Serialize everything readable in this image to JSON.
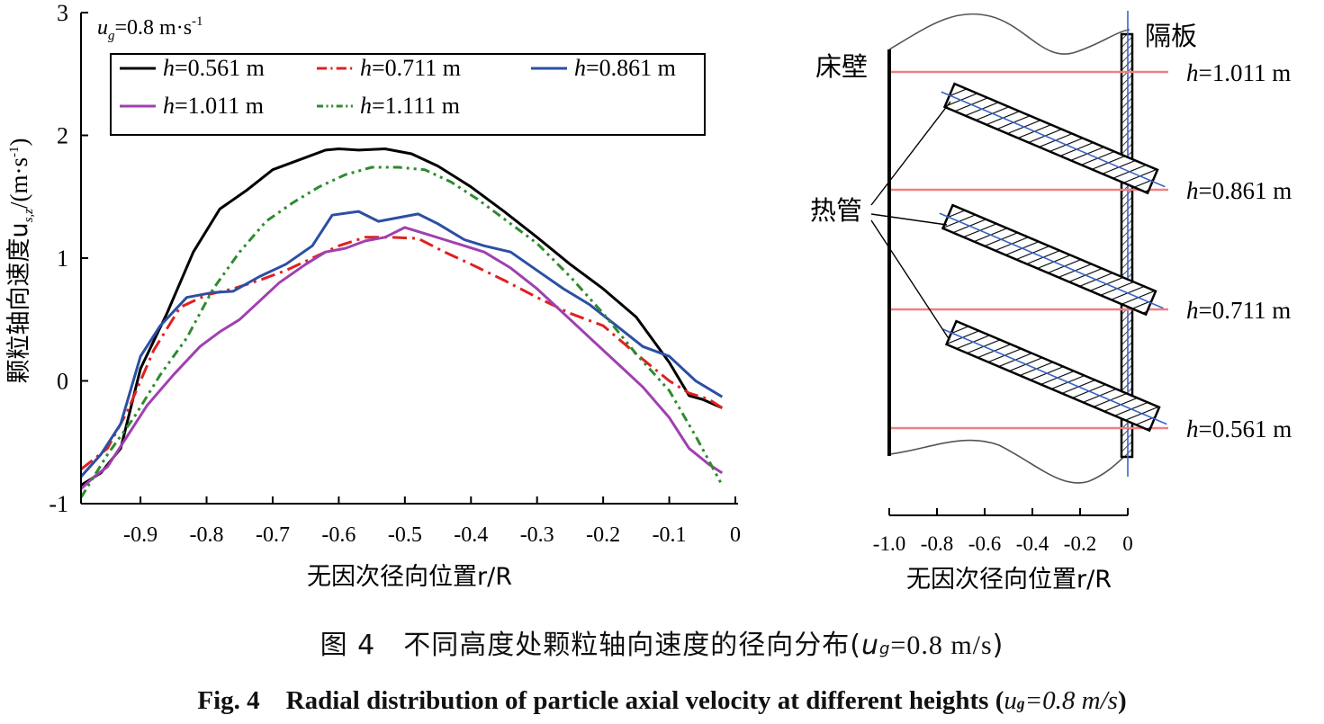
{
  "chart_data": [
    {
      "type": "line",
      "xlabel": "无因次径向位置r/R",
      "ylabel": "颗粒轴向速度u",
      "ylabel_sub": "s,z",
      "ylabel_unit": "/(m·s",
      "ylabel_unit_sup": "-1",
      "ylabel_unit_end": ")",
      "xlim": [
        -0.99,
        0
      ],
      "ylim": [
        -1,
        3
      ],
      "xticks": [
        -0.9,
        -0.8,
        -0.7,
        -0.6,
        -0.5,
        -0.4,
        -0.3,
        -0.2,
        -0.1,
        0
      ],
      "xticklabels": [
        "-0.9",
        "-0.8",
        "-0.7",
        "-0.6",
        "-0.5",
        "-0.4",
        "-0.3",
        "-0.2",
        "-0.1",
        "0"
      ],
      "yticks": [
        -1,
        0,
        1,
        2,
        3
      ],
      "yticklabels": [
        "-1",
        "0",
        "1",
        "2",
        "3"
      ],
      "annotation": {
        "main": "u",
        "sub": "g",
        "rest": "=0.8 m·s",
        "sup": "-1"
      },
      "legend_position": "top",
      "series": [
        {
          "name": "h=0.561 m",
          "color": "#000000",
          "dash": "",
          "x": [
            -0.99,
            -0.96,
            -0.93,
            -0.9,
            -0.86,
            -0.82,
            -0.78,
            -0.74,
            -0.7,
            -0.66,
            -0.62,
            -0.6,
            -0.57,
            -0.53,
            -0.49,
            -0.45,
            -0.4,
            -0.35,
            -0.3,
            -0.25,
            -0.2,
            -0.15,
            -0.1,
            -0.07,
            -0.05,
            -0.02
          ],
          "y": [
            -0.85,
            -0.75,
            -0.55,
            0.1,
            0.55,
            1.05,
            1.4,
            1.55,
            1.72,
            1.8,
            1.88,
            1.89,
            1.88,
            1.89,
            1.85,
            1.75,
            1.58,
            1.38,
            1.17,
            0.95,
            0.75,
            0.52,
            0.15,
            -0.12,
            -0.15,
            -0.22
          ]
        },
        {
          "name": "h=0.711 m",
          "color": "#e02020",
          "dash": "16,6,3,6",
          "x": [
            -0.99,
            -0.95,
            -0.92,
            -0.88,
            -0.84,
            -0.8,
            -0.76,
            -0.72,
            -0.68,
            -0.64,
            -0.6,
            -0.56,
            -0.52,
            -0.48,
            -0.44,
            -0.4,
            -0.35,
            -0.3,
            -0.25,
            -0.2,
            -0.15,
            -0.1,
            -0.07,
            -0.04,
            -0.02
          ],
          "y": [
            -0.72,
            -0.55,
            -0.25,
            0.25,
            0.6,
            0.7,
            0.75,
            0.82,
            0.9,
            1.0,
            1.1,
            1.17,
            1.17,
            1.16,
            1.05,
            0.95,
            0.82,
            0.68,
            0.55,
            0.45,
            0.22,
            0.0,
            -0.1,
            -0.15,
            -0.22
          ]
        },
        {
          "name": "h=0.861 m",
          "color": "#2c4fa3",
          "dash": "",
          "x": [
            -0.99,
            -0.96,
            -0.93,
            -0.9,
            -0.87,
            -0.83,
            -0.79,
            -0.76,
            -0.72,
            -0.68,
            -0.64,
            -0.61,
            -0.57,
            -0.54,
            -0.51,
            -0.48,
            -0.45,
            -0.41,
            -0.38,
            -0.34,
            -0.3,
            -0.26,
            -0.22,
            -0.18,
            -0.14,
            -0.1,
            -0.06,
            -0.02
          ],
          "y": [
            -0.78,
            -0.6,
            -0.35,
            0.2,
            0.45,
            0.68,
            0.72,
            0.73,
            0.85,
            0.95,
            1.1,
            1.35,
            1.38,
            1.3,
            1.33,
            1.36,
            1.28,
            1.15,
            1.1,
            1.05,
            0.9,
            0.75,
            0.62,
            0.45,
            0.28,
            0.2,
            0.0,
            -0.13
          ]
        },
        {
          "name": "h=1.011 m",
          "color": "#a040b0",
          "dash": "",
          "x": [
            -0.99,
            -0.97,
            -0.95,
            -0.92,
            -0.89,
            -0.85,
            -0.81,
            -0.78,
            -0.75,
            -0.72,
            -0.69,
            -0.65,
            -0.62,
            -0.59,
            -0.56,
            -0.53,
            -0.5,
            -0.47,
            -0.44,
            -0.41,
            -0.38,
            -0.34,
            -0.3,
            -0.26,
            -0.22,
            -0.18,
            -0.14,
            -0.1,
            -0.07,
            -0.04,
            -0.02
          ],
          "y": [
            -0.88,
            -0.78,
            -0.7,
            -0.45,
            -0.2,
            0.05,
            0.28,
            0.4,
            0.5,
            0.65,
            0.8,
            0.95,
            1.05,
            1.08,
            1.14,
            1.17,
            1.25,
            1.2,
            1.15,
            1.1,
            1.05,
            0.92,
            0.75,
            0.55,
            0.35,
            0.15,
            -0.05,
            -0.3,
            -0.55,
            -0.68,
            -0.75
          ]
        },
        {
          "name": "h=1.111 m",
          "color": "#2e8b2e",
          "dash": "10,5,3,5,3,5",
          "x": [
            -0.99,
            -0.95,
            -0.91,
            -0.87,
            -0.83,
            -0.79,
            -0.75,
            -0.71,
            -0.67,
            -0.63,
            -0.59,
            -0.55,
            -0.51,
            -0.47,
            -0.43,
            -0.39,
            -0.35,
            -0.3,
            -0.25,
            -0.2,
            -0.15,
            -0.1,
            -0.06,
            -0.02
          ],
          "y": [
            -0.95,
            -0.6,
            -0.3,
            0.05,
            0.35,
            0.75,
            1.05,
            1.3,
            1.45,
            1.58,
            1.68,
            1.74,
            1.74,
            1.72,
            1.62,
            1.48,
            1.32,
            1.12,
            0.85,
            0.55,
            0.22,
            -0.08,
            -0.45,
            -0.85
          ]
        }
      ]
    },
    {
      "type": "other",
      "xlabel": "无因次径向位置r/R",
      "xticklabels": [
        "-1.0",
        "-0.8",
        "-0.6",
        "-0.4",
        "-0.2",
        "0"
      ],
      "wall_label": "床壁",
      "baffle_label": "隔板",
      "tube_label": "热管",
      "heights": [
        "h=1.011 m",
        "h=0.861 m",
        "h=0.711 m",
        "h=0.561 m"
      ],
      "colors": {
        "height_line": "#f08080",
        "tube_axis": "#3a64c8",
        "wall": "#000000"
      }
    }
  ],
  "caption_zh": {
    "text": "图 4　不同高度处颗粒轴向速度的径向分布",
    "open": "(",
    "u": "u",
    "sub": "g",
    "rest": "=0.8 m/s",
    "close": ")"
  },
  "caption_en": {
    "text": "Fig. 4　Radial distribution of particle axial velocity at different heights",
    "open": " (",
    "u": "u",
    "sub": "g",
    "rest": "=0.8 m/s",
    "close": ")"
  }
}
